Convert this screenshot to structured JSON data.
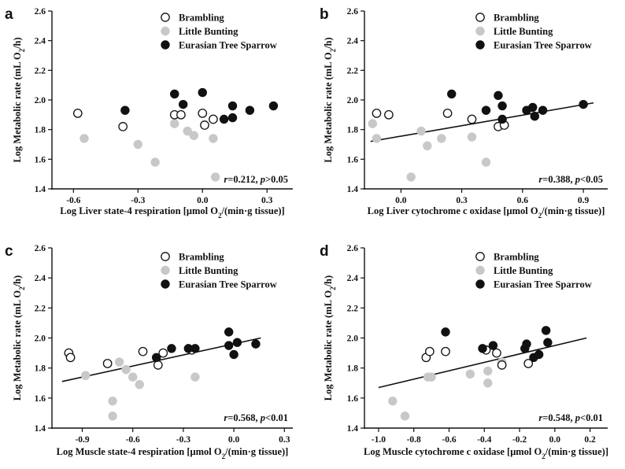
{
  "chart_data": [
    {
      "type": "scatter",
      "panel_label": "a",
      "xlabel": "Log  Liver state-4 respiration [μmol O2/(min·g tissue)]",
      "ylabel": "Log  Metabolic rate (mL O2/h)",
      "xlim": [
        -0.7,
        0.42
      ],
      "ylim": [
        1.4,
        2.6
      ],
      "xticks": [
        "-0.6",
        "-0.3",
        "0.0",
        "0.3"
      ],
      "yticks": [
        "1.4",
        "1.6",
        "1.8",
        "2.0",
        "2.2",
        "2.4",
        "2.6"
      ],
      "legend": [
        "Brambling",
        "Little Bunting",
        "Eurasian Tree Sparrow"
      ],
      "legend_placement": "top-right",
      "stat": {
        "r": "r=0.212, ",
        "p": "p>0.05"
      },
      "regression_line": null,
      "series": [
        {
          "name": "Brambling",
          "marker": "open",
          "points": [
            [
              -0.58,
              1.91
            ],
            [
              -0.37,
              1.82
            ],
            [
              -0.13,
              1.9
            ],
            [
              -0.1,
              1.9
            ],
            [
              0.0,
              1.91
            ],
            [
              0.01,
              1.83
            ],
            [
              0.05,
              1.87
            ]
          ]
        },
        {
          "name": "Little Bunting",
          "marker": "gray",
          "points": [
            [
              -0.55,
              1.74
            ],
            [
              -0.3,
              1.7
            ],
            [
              -0.22,
              1.58
            ],
            [
              -0.13,
              1.84
            ],
            [
              -0.07,
              1.79
            ],
            [
              -0.04,
              1.76
            ],
            [
              0.05,
              1.74
            ],
            [
              0.06,
              1.48
            ]
          ]
        },
        {
          "name": "Eurasian Tree Sparrow",
          "marker": "black",
          "points": [
            [
              -0.36,
              1.93
            ],
            [
              -0.13,
              2.04
            ],
            [
              -0.09,
              1.97
            ],
            [
              0.0,
              2.05
            ],
            [
              0.1,
              1.87
            ],
            [
              0.14,
              1.88
            ],
            [
              0.14,
              1.96
            ],
            [
              0.22,
              1.93
            ],
            [
              0.33,
              1.96
            ]
          ]
        }
      ]
    },
    {
      "type": "scatter",
      "panel_label": "b",
      "xlabel": "Log  Liver cytochrome c oxidase [μmol O2/(min·g tissue)]",
      "ylabel": "Log  Metabolic rate (mL O2/h)",
      "xlim": [
        -0.18,
        1.02
      ],
      "ylim": [
        1.4,
        2.6
      ],
      "xticks": [
        "0.0",
        "0.3",
        "0.6",
        "0.9"
      ],
      "yticks": [
        "1.4",
        "1.6",
        "1.8",
        "2.0",
        "2.2",
        "2.4",
        "2.6"
      ],
      "legend": [
        "Brambling",
        "Little Bunting",
        "Eurasian Tree Sparrow"
      ],
      "legend_placement": "top-right",
      "stat": {
        "r": "r=0.388, ",
        "p": "p<0.05"
      },
      "regression_line": [
        [
          -0.15,
          1.72
        ],
        [
          0.95,
          1.98
        ]
      ],
      "series": [
        {
          "name": "Brambling",
          "marker": "open",
          "points": [
            [
              -0.12,
              1.91
            ],
            [
              -0.06,
              1.9
            ],
            [
              0.23,
              1.91
            ],
            [
              0.35,
              1.87
            ],
            [
              0.48,
              1.82
            ],
            [
              0.51,
              1.83
            ]
          ]
        },
        {
          "name": "Little Bunting",
          "marker": "gray",
          "points": [
            [
              -0.14,
              1.84
            ],
            [
              -0.12,
              1.74
            ],
            [
              0.05,
              1.48
            ],
            [
              0.1,
              1.79
            ],
            [
              0.13,
              1.69
            ],
            [
              0.2,
              1.74
            ],
            [
              0.35,
              1.75
            ],
            [
              0.42,
              1.58
            ]
          ]
        },
        {
          "name": "Eurasian Tree Sparrow",
          "marker": "black",
          "points": [
            [
              0.25,
              2.04
            ],
            [
              0.42,
              1.93
            ],
            [
              0.48,
              2.03
            ],
            [
              0.5,
              1.96
            ],
            [
              0.5,
              1.87
            ],
            [
              0.62,
              1.93
            ],
            [
              0.65,
              1.95
            ],
            [
              0.66,
              1.89
            ],
            [
              0.7,
              1.93
            ],
            [
              0.9,
              1.97
            ]
          ]
        }
      ]
    },
    {
      "type": "scatter",
      "panel_label": "c",
      "xlabel": "Log  Muscle state-4 respiration [μmol O2/(min·g tissue)]",
      "ylabel": "Log  Metabolic rate (mL O2/h)",
      "xlim": [
        -1.08,
        0.35
      ],
      "ylim": [
        1.4,
        2.6
      ],
      "xticks": [
        "-0.9",
        "-0.6",
        "-0.3",
        "0.0",
        "0.3"
      ],
      "yticks": [
        "1.4",
        "1.6",
        "1.8",
        "2.0",
        "2.2",
        "2.4",
        "2.6"
      ],
      "legend": [
        "Brambling",
        "Little Bunting",
        "Eurasian Tree Sparrow"
      ],
      "legend_placement": "top-right",
      "stat": {
        "r": "r=0.568, ",
        "p": "p<0.01"
      },
      "regression_line": [
        [
          -1.02,
          1.71
        ],
        [
          0.16,
          2.0
        ]
      ],
      "series": [
        {
          "name": "Brambling",
          "marker": "open",
          "points": [
            [
              -0.98,
              1.9
            ],
            [
              -0.97,
              1.87
            ],
            [
              -0.75,
              1.83
            ],
            [
              -0.54,
              1.91
            ],
            [
              -0.45,
              1.82
            ],
            [
              -0.42,
              1.9
            ],
            [
              -0.25,
              1.92
            ]
          ]
        },
        {
          "name": "Little Bunting",
          "marker": "gray",
          "points": [
            [
              -0.88,
              1.75
            ],
            [
              -0.72,
              1.58
            ],
            [
              -0.72,
              1.48
            ],
            [
              -0.68,
              1.84
            ],
            [
              -0.64,
              1.79
            ],
            [
              -0.6,
              1.74
            ],
            [
              -0.56,
              1.69
            ],
            [
              -0.23,
              1.74
            ]
          ]
        },
        {
          "name": "Eurasian Tree Sparrow",
          "marker": "black",
          "points": [
            [
              -0.46,
              1.87
            ],
            [
              -0.37,
              1.93
            ],
            [
              -0.27,
              1.93
            ],
            [
              -0.23,
              1.93
            ],
            [
              -0.03,
              2.04
            ],
            [
              -0.03,
              1.95
            ],
            [
              0.0,
              1.89
            ],
            [
              0.02,
              1.97
            ],
            [
              0.13,
              1.96
            ]
          ]
        }
      ]
    },
    {
      "type": "scatter",
      "panel_label": "d",
      "xlabel": "Log  Muscle cytochrome c oxidase [μmol O2/(min·g tissue)]",
      "ylabel": "Log  Metabolic rate (mL O2/h)",
      "xlim": [
        -1.08,
        0.3
      ],
      "ylim": [
        1.4,
        2.6
      ],
      "xticks": [
        "-1.0",
        "-0.8",
        "-0.6",
        "-0.4",
        "-0.2",
        "0.0",
        "0.2"
      ],
      "yticks": [
        "1.4",
        "1.6",
        "1.8",
        "2.0",
        "2.2",
        "2.4",
        "2.6"
      ],
      "legend": [
        "Brambling",
        "Little Bunting",
        "Eurasian Tree Sparrow"
      ],
      "legend_placement": "top-right",
      "stat": {
        "r": "r=0.548, ",
        "p": "p<0.01"
      },
      "regression_line": [
        [
          -1.0,
          1.67
        ],
        [
          0.18,
          2.0
        ]
      ],
      "series": [
        {
          "name": "Brambling",
          "marker": "open",
          "points": [
            [
              -0.73,
              1.87
            ],
            [
              -0.71,
              1.91
            ],
            [
              -0.62,
              1.91
            ],
            [
              -0.39,
              1.92
            ],
            [
              -0.33,
              1.9
            ],
            [
              -0.3,
              1.82
            ],
            [
              -0.15,
              1.83
            ]
          ]
        },
        {
          "name": "Little Bunting",
          "marker": "gray",
          "points": [
            [
              -0.92,
              1.58
            ],
            [
              -0.85,
              1.48
            ],
            [
              -0.72,
              1.74
            ],
            [
              -0.7,
              1.74
            ],
            [
              -0.48,
              1.76
            ],
            [
              -0.38,
              1.7
            ],
            [
              -0.38,
              1.78
            ],
            [
              -0.3,
              1.84
            ]
          ]
        },
        {
          "name": "Eurasian Tree Sparrow",
          "marker": "black",
          "points": [
            [
              -0.62,
              2.04
            ],
            [
              -0.41,
              1.93
            ],
            [
              -0.35,
              1.95
            ],
            [
              -0.17,
              1.93
            ],
            [
              -0.16,
              1.96
            ],
            [
              -0.12,
              1.87
            ],
            [
              -0.09,
              1.89
            ],
            [
              -0.05,
              2.05
            ],
            [
              -0.04,
              1.97
            ]
          ]
        }
      ]
    }
  ],
  "colors": {
    "open_fill": "#ffffff",
    "gray_fill": "#c8c8c8",
    "black_fill": "#111111",
    "stroke": "#111111"
  }
}
